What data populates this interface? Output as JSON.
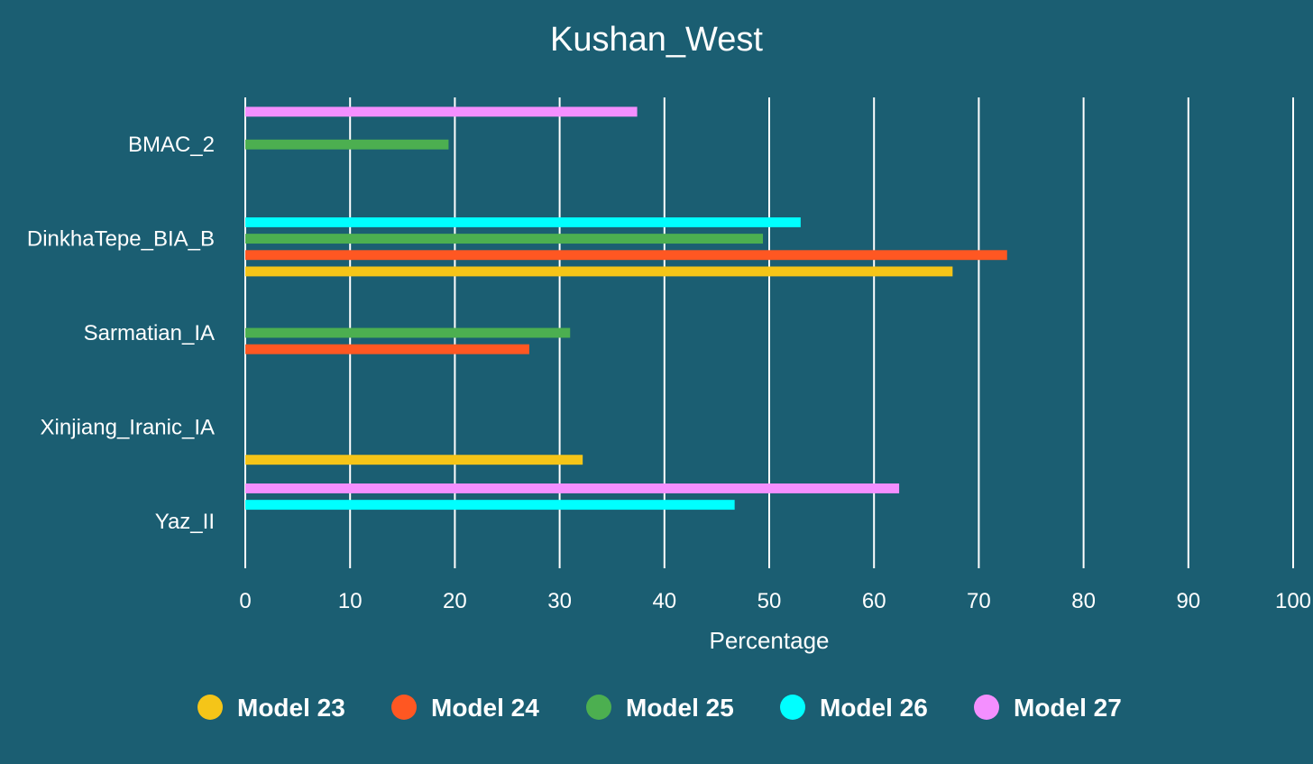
{
  "chart_data": {
    "type": "bar",
    "orientation": "horizontal",
    "title": "Kushan_West",
    "xlabel": "Percentage",
    "ylabel": "",
    "xlim": [
      0,
      100
    ],
    "xticks": [
      "0",
      "10",
      "20",
      "30",
      "40",
      "50",
      "60",
      "70",
      "80",
      "90",
      "100"
    ],
    "grid": true,
    "legend_position": "bottom",
    "categories": [
      "BMAC_2",
      "DinkhaTepe_BIA_B",
      "Sarmatian_IA",
      "Xinjiang_Iranic_IA",
      "Yaz_II"
    ],
    "series": [
      {
        "name": "Model 23",
        "color": "#f5c518",
        "values": [
          null,
          67.5,
          null,
          32.2,
          null
        ]
      },
      {
        "name": "Model 24",
        "color": "#ff5722",
        "values": [
          null,
          72.7,
          27.1,
          null,
          null
        ]
      },
      {
        "name": "Model 25",
        "color": "#4caf50",
        "values": [
          19.4,
          49.4,
          31.0,
          null,
          null
        ]
      },
      {
        "name": "Model 26",
        "color": "#00ffff",
        "values": [
          null,
          53.0,
          null,
          null,
          46.7
        ]
      },
      {
        "name": "Model 27",
        "color": "#f48fff",
        "values": [
          37.4,
          null,
          null,
          null,
          62.4
        ]
      }
    ]
  }
}
